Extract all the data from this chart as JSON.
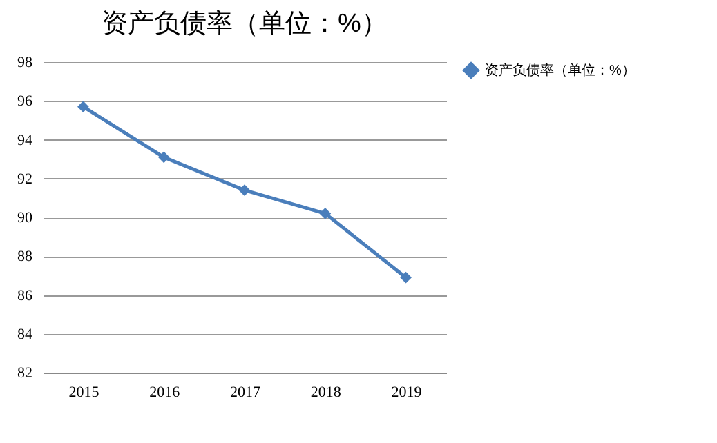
{
  "chart_data": {
    "type": "line",
    "title": "资产负债率（单位：%）",
    "categories": [
      "2015",
      "2016",
      "2017",
      "2018",
      "2019"
    ],
    "series": [
      {
        "name": "资产负债率（单位：%）",
        "color": "#4a7ebb",
        "values": [
          95.7,
          93.1,
          91.4,
          90.2,
          86.9
        ]
      }
    ],
    "ylim": [
      82,
      98
    ],
    "yticks": [
      82,
      84,
      86,
      88,
      90,
      92,
      94,
      96,
      98
    ],
    "grid": "y",
    "legend": "right",
    "marker": "diamond",
    "line_style": "solid"
  }
}
